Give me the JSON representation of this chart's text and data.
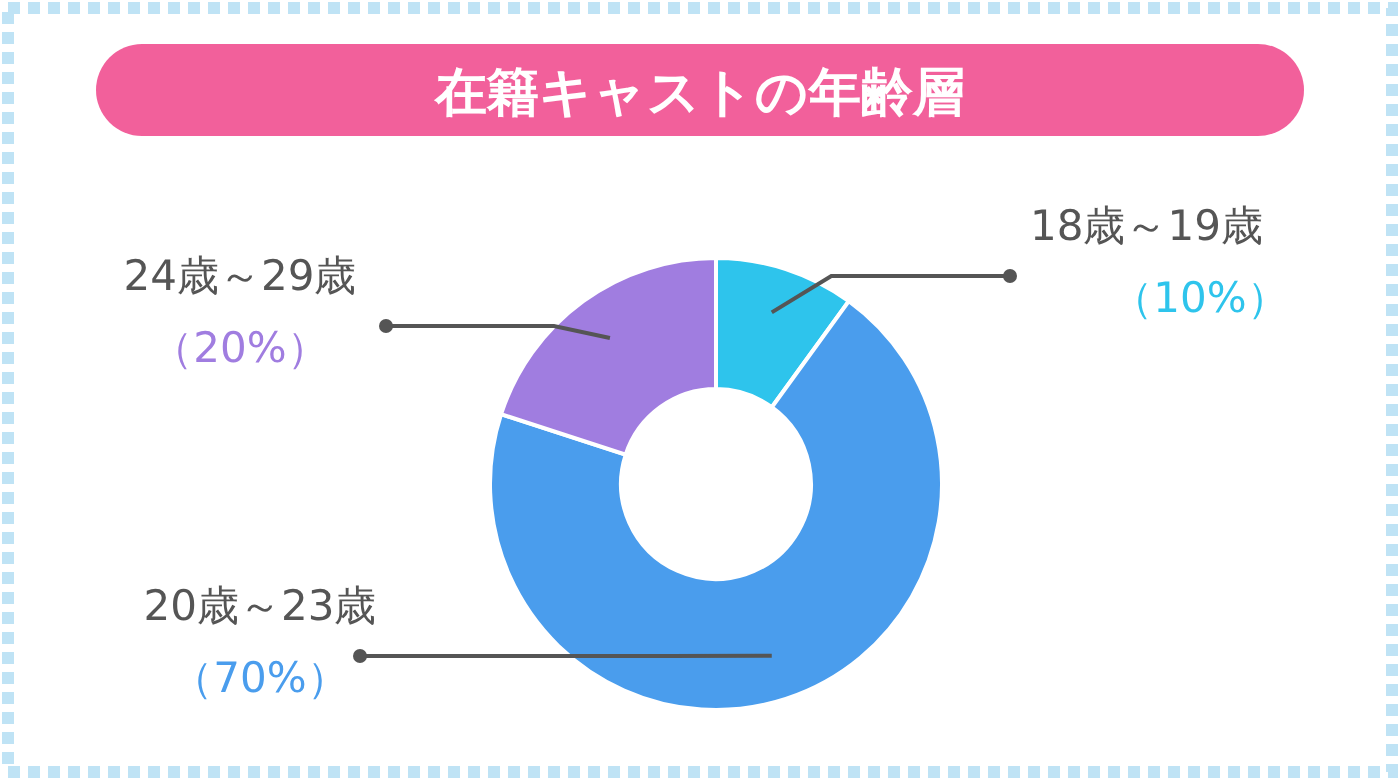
{
  "chart_data": {
    "type": "donut",
    "title": "在籍キャストの年齢層",
    "categories": [
      "18歳～19歳",
      "20歳～23歳",
      "24歳～29歳"
    ],
    "values": [
      10,
      70,
      20
    ],
    "colors": [
      "#2ec4ec",
      "#4a9ded",
      "#a07de0"
    ],
    "value_labels": [
      "（10%）",
      "（70%）",
      "（20%）"
    ]
  }
}
